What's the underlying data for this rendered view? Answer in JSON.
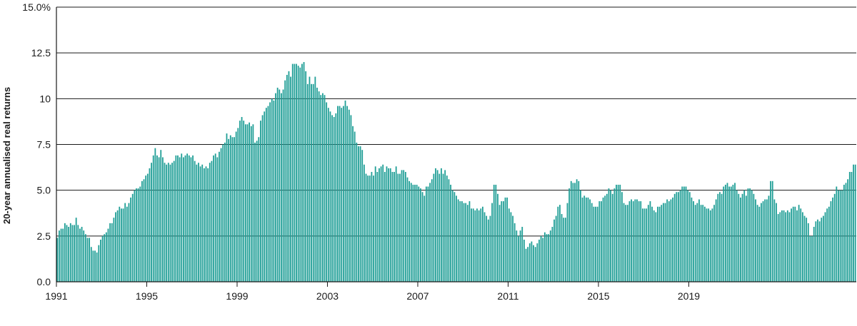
{
  "chart_data": {
    "type": "bar",
    "title": "",
    "xlabel": "",
    "ylabel": "20-year annualised real returns",
    "ylim": [
      0,
      15
    ],
    "grid": true,
    "legend": "none",
    "x_tick_labels": [
      "1991",
      "1995",
      "1999",
      "2003",
      "2007",
      "2011",
      "2015",
      "2019"
    ],
    "y_tick_labels": [
      "0.0",
      "2.5",
      "5.0",
      "7.5",
      "10",
      "12.5",
      "15.0%"
    ],
    "y_tick_values": [
      0,
      2.5,
      5,
      7.5,
      10,
      12.5,
      15
    ],
    "x_start": "1991-01",
    "frequency": "monthly",
    "series": [
      {
        "values": [
          2.4,
          2.8,
          2.9,
          2.9,
          3.2,
          3.1,
          3.0,
          3.2,
          3.1,
          3.1,
          3.5,
          3.1,
          2.9,
          3.0,
          2.8,
          2.6,
          2.4,
          2.4,
          1.9,
          1.7,
          1.7,
          1.6,
          2.0,
          2.3,
          2.5,
          2.6,
          2.7,
          2.9,
          3.2,
          3.2,
          3.5,
          3.8,
          3.9,
          4.1,
          4.0,
          4.0,
          4.3,
          4.1,
          4.3,
          4.6,
          4.8,
          5.0,
          5.1,
          5.1,
          5.2,
          5.5,
          5.6,
          5.8,
          5.9,
          6.2,
          6.5,
          6.9,
          7.3,
          6.9,
          6.8,
          7.2,
          6.8,
          6.5,
          6.4,
          6.5,
          6.4,
          6.5,
          6.6,
          6.9,
          6.9,
          6.8,
          7.0,
          6.8,
          6.9,
          7.0,
          6.9,
          6.8,
          6.9,
          6.6,
          6.4,
          6.5,
          6.3,
          6.4,
          6.2,
          6.3,
          6.2,
          6.5,
          6.6,
          6.9,
          7.0,
          6.8,
          7.1,
          7.3,
          7.5,
          7.6,
          8.1,
          7.8,
          8.0,
          7.9,
          7.9,
          8.2,
          8.4,
          8.8,
          9.0,
          8.8,
          8.6,
          8.6,
          8.7,
          8.5,
          8.6,
          7.6,
          7.7,
          7.9,
          8.8,
          9.1,
          9.3,
          9.5,
          9.6,
          9.8,
          10.0,
          9.9,
          10.3,
          10.6,
          10.5,
          10.3,
          10.5,
          11.0,
          11.3,
          11.5,
          11.2,
          11.9,
          11.9,
          11.9,
          11.8,
          11.7,
          11.9,
          12.0,
          11.5,
          10.8,
          11.2,
          10.8,
          10.8,
          11.2,
          10.6,
          10.4,
          10.2,
          10.3,
          10.2,
          9.8,
          9.5,
          9.3,
          9.1,
          9.0,
          9.2,
          9.6,
          9.6,
          9.5,
          9.6,
          9.9,
          9.6,
          9.4,
          9.1,
          8.5,
          8.2,
          7.6,
          7.4,
          7.4,
          7.2,
          6.4,
          5.9,
          5.8,
          5.8,
          6.0,
          5.8,
          6.3,
          6.0,
          6.2,
          6.3,
          6.4,
          6.0,
          6.3,
          6.2,
          6.2,
          6.0,
          6.0,
          6.3,
          5.9,
          5.9,
          6.1,
          6.1,
          6.0,
          5.7,
          5.5,
          5.4,
          5.3,
          5.3,
          5.3,
          5.2,
          5.1,
          4.9,
          4.7,
          5.2,
          5.2,
          5.4,
          5.6,
          5.9,
          6.2,
          6.1,
          5.9,
          6.2,
          5.9,
          6.1,
          5.8,
          5.6,
          5.3,
          5.0,
          4.9,
          4.7,
          4.5,
          4.4,
          4.4,
          4.3,
          4.3,
          4.2,
          4.4,
          4.0,
          4.0,
          3.9,
          4.0,
          3.9,
          4.0,
          4.1,
          3.8,
          3.6,
          3.4,
          3.6,
          4.3,
          5.3,
          5.3,
          4.8,
          4.2,
          4.4,
          4.4,
          4.6,
          4.6,
          4.0,
          3.8,
          3.6,
          3.2,
          2.8,
          2.5,
          2.8,
          3.0,
          2.3,
          1.8,
          1.9,
          2.1,
          2.2,
          2.0,
          1.9,
          2.1,
          2.3,
          2.5,
          2.4,
          2.7,
          2.6,
          2.6,
          2.8,
          3.0,
          3.4,
          3.6,
          4.1,
          4.2,
          3.7,
          3.5,
          3.5,
          4.3,
          5.1,
          5.5,
          5.4,
          5.4,
          5.6,
          5.5,
          5.0,
          4.6,
          4.7,
          4.6,
          4.6,
          4.5,
          4.3,
          4.1,
          4.1,
          4.1,
          4.4,
          4.4,
          4.6,
          4.7,
          4.8,
          5.1,
          5.0,
          4.8,
          5.1,
          5.3,
          5.3,
          5.3,
          4.9,
          4.3,
          4.2,
          4.2,
          4.4,
          4.5,
          4.4,
          4.5,
          4.5,
          4.4,
          4.4,
          4.0,
          4.0,
          4.0,
          4.2,
          4.4,
          4.1,
          3.9,
          3.8,
          4.1,
          4.1,
          4.2,
          4.3,
          4.3,
          4.5,
          4.4,
          4.5,
          4.6,
          4.8,
          4.9,
          4.9,
          5.0,
          5.2,
          5.2,
          5.2,
          5.0,
          4.9,
          4.6,
          4.4,
          4.2,
          4.3,
          4.5,
          4.2,
          4.2,
          4.1,
          4.0,
          4.0,
          3.9,
          4.0,
          4.2,
          4.5,
          4.8,
          4.9,
          4.8,
          5.2,
          5.3,
          5.4,
          5.2,
          5.2,
          5.3,
          5.4,
          5.0,
          4.8,
          4.6,
          4.8,
          5.0,
          4.7,
          5.1,
          5.1,
          5.0,
          4.8,
          4.5,
          4.2,
          4.1,
          4.3,
          4.4,
          4.5,
          4.5,
          4.7,
          5.5,
          5.5,
          4.5,
          4.3,
          3.7,
          3.8,
          3.9,
          3.9,
          3.8,
          3.9,
          3.8,
          4.0,
          4.1,
          4.1,
          3.9,
          4.2,
          4.0,
          3.8,
          3.6,
          3.5,
          3.2,
          2.5,
          2.5,
          3.0,
          3.3,
          3.4,
          3.3,
          3.5,
          3.6,
          3.8,
          4.0,
          4.1,
          4.4,
          4.6,
          4.8,
          5.2,
          5.0,
          5.0,
          5.0,
          5.3,
          5.4,
          5.6,
          6.0,
          6.0,
          6.4,
          6.4
        ]
      }
    ],
    "colors": {
      "bar": "#1f9e96",
      "grid": "#1a1a1a",
      "axis": "#1a1a1a",
      "text": "#1a1a1a"
    }
  }
}
